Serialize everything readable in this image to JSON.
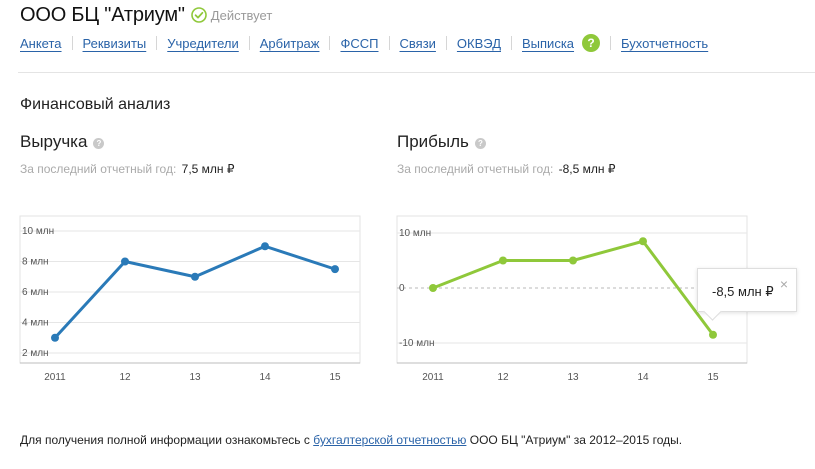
{
  "header": {
    "company_name": "ООО БЦ \"Атриум\"",
    "status": "Действует",
    "status_color": "#8fc83a"
  },
  "tabs": [
    "Анкета",
    "Реквизиты",
    "Учредители",
    "Арбитраж",
    "ФССП",
    "Связи",
    "ОКВЭД",
    "Выписка",
    "Бухотчетность"
  ],
  "help_badge": "?",
  "section_title": "Финансовый анализ",
  "revenue": {
    "title": "Выручка",
    "help": "?",
    "last_year_label": "За последний отчетный год:",
    "last_year_value": "7,5 млн ₽"
  },
  "profit": {
    "title": "Прибыль",
    "help": "?",
    "last_year_label": "За последний отчетный год:",
    "last_year_value": "-8,5 млн ₽",
    "tooltip": "-8,5 млн ₽",
    "tooltip_close": "×"
  },
  "footer": {
    "prefix": "Для получения полной информации ознакомьтесь с ",
    "link": "бухгалтерской отчетностью",
    "suffix": " ООО БЦ \"Атриум\" за 2012–2015 годы."
  },
  "chart_data": [
    {
      "type": "line",
      "categories": [
        "2011",
        "12",
        "13",
        "14",
        "15"
      ],
      "series": [
        {
          "values": [
            3,
            8,
            7,
            9,
            7.5
          ],
          "color": "#2a7ab8"
        }
      ],
      "yticks": [
        2,
        4,
        6,
        8,
        10
      ],
      "ytick_labels": [
        "2 млн",
        "4 млн",
        "6 млн",
        "8 млн",
        "10 млн"
      ],
      "ylim": [
        2,
        10
      ],
      "grid": true
    },
    {
      "type": "line",
      "categories": [
        "2011",
        "12",
        "13",
        "14",
        "15"
      ],
      "series": [
        {
          "values": [
            0,
            5,
            5,
            8.5,
            -8.5
          ],
          "color": "#8fc83a"
        }
      ],
      "yticks": [
        -10,
        0,
        10
      ],
      "ytick_labels": [
        "-10 млн",
        "0",
        "10 млн"
      ],
      "ylim": [
        -10,
        10
      ],
      "grid": true,
      "zero_line": "dashed"
    }
  ]
}
